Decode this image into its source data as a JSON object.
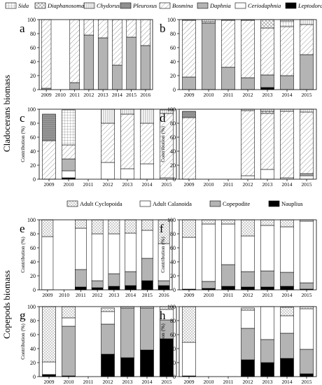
{
  "sections": {
    "cladocerans": "Cladocerans biomass",
    "copepods": "Copepods biomass"
  },
  "legend_cladocerans": [
    {
      "name": "Sida",
      "pattern": "grid"
    },
    {
      "name": "Diaphanosoma",
      "pattern": "cross"
    },
    {
      "name": "Chydorus",
      "pattern": "vlines"
    },
    {
      "name": "Pleuroxus",
      "pattern": "hlines"
    },
    {
      "name": "Bosmina",
      "pattern": "diag"
    },
    {
      "name": "Daphnia",
      "pattern": "gray"
    },
    {
      "name": "Ceriodaphnia",
      "pattern": "white"
    },
    {
      "name": "Leptodora",
      "pattern": "black"
    }
  ],
  "legend_copepods": [
    {
      "name": "Adult Cyclopoida",
      "pattern": "dots"
    },
    {
      "name": "Adult Calanoida",
      "pattern": "white"
    },
    {
      "name": "Copepodite",
      "pattern": "gray"
    },
    {
      "name": "Nauplius",
      "pattern": "black"
    }
  ],
  "chart_data": [
    {
      "panel": "a",
      "type": "bar",
      "stacked": true,
      "ylabel": "",
      "ylim": [
        0,
        100
      ],
      "categories": [
        "2009",
        "2010",
        "2011",
        "2012",
        "2013",
        "2014",
        "2015",
        "2016"
      ],
      "series": [
        {
          "name": "Leptodora",
          "pattern": "black",
          "values": [
            0,
            0,
            0,
            0,
            0,
            0,
            0,
            0
          ]
        },
        {
          "name": "Ceriodaphnia",
          "pattern": "white",
          "values": [
            0,
            0,
            0,
            0,
            0,
            0,
            0,
            0
          ]
        },
        {
          "name": "Daphnia",
          "pattern": "gray",
          "values": [
            2,
            0,
            10,
            78,
            74,
            35,
            75,
            63
          ]
        },
        {
          "name": "Bosmina",
          "pattern": "diag",
          "values": [
            98,
            0,
            90,
            22,
            26,
            65,
            25,
            37
          ]
        }
      ]
    },
    {
      "panel": "b",
      "type": "bar",
      "stacked": true,
      "ylabel": "",
      "ylim": [
        0,
        100
      ],
      "categories": [
        "2009",
        "2010",
        "2011",
        "2012",
        "2013",
        "2014",
        "2015"
      ],
      "series": [
        {
          "name": "Leptodora",
          "pattern": "black",
          "values": [
            0,
            0,
            0,
            0,
            3,
            0,
            0
          ]
        },
        {
          "name": "Ceriodaphnia",
          "pattern": "white",
          "values": [
            0,
            0,
            0,
            0,
            0,
            0,
            0
          ]
        },
        {
          "name": "Daphnia",
          "pattern": "gray",
          "values": [
            18,
            95,
            32,
            17,
            18,
            20,
            50
          ]
        },
        {
          "name": "Bosmina",
          "pattern": "diag",
          "values": [
            81,
            2,
            67,
            82,
            67,
            70,
            43
          ]
        },
        {
          "name": "Diaphanosoma",
          "pattern": "cross",
          "values": [
            0,
            0,
            0,
            0,
            12,
            0,
            0
          ]
        },
        {
          "name": "Sida",
          "pattern": "grid",
          "values": [
            0,
            0,
            0,
            0,
            0,
            8,
            0
          ]
        },
        {
          "name": "Chydorus",
          "pattern": "vlines",
          "values": [
            1,
            3,
            1,
            1,
            0,
            2,
            7
          ]
        }
      ]
    },
    {
      "panel": "c",
      "type": "bar",
      "stacked": true,
      "ylabel": "Contribution (%)",
      "ylim": [
        0,
        100
      ],
      "categories": [
        "2009",
        "2010",
        "2011",
        "2012",
        "2013",
        "2014",
        "2015"
      ],
      "series": [
        {
          "name": "Leptodora",
          "pattern": "black",
          "values": [
            0,
            2,
            0,
            0,
            0,
            0,
            0
          ]
        },
        {
          "name": "Ceriodaphnia",
          "pattern": "white",
          "values": [
            0,
            10,
            0,
            24,
            15,
            22,
            2
          ]
        },
        {
          "name": "Daphnia",
          "pattern": "gray",
          "values": [
            0,
            17,
            0,
            0,
            0,
            0,
            0
          ]
        },
        {
          "name": "Bosmina",
          "pattern": "diag",
          "values": [
            55,
            20,
            0,
            56,
            78,
            58,
            92
          ]
        },
        {
          "name": "Pleuroxus",
          "pattern": "hlines",
          "values": [
            38,
            0,
            0,
            0,
            0,
            0,
            0
          ]
        },
        {
          "name": "Sida",
          "pattern": "grid",
          "values": [
            0,
            50,
            0,
            0,
            0,
            0,
            0
          ]
        },
        {
          "name": "Chydorus",
          "pattern": "vlines",
          "values": [
            0,
            0,
            0,
            20,
            7,
            20,
            5
          ]
        }
      ]
    },
    {
      "panel": "d",
      "type": "bar",
      "stacked": true,
      "ylabel": "Contribution (%)",
      "ylim": [
        0,
        100
      ],
      "categories": [
        "2009",
        "2010",
        "2011",
        "2012",
        "2013",
        "2014",
        "2015"
      ],
      "series": [
        {
          "name": "Leptodora",
          "pattern": "black",
          "values": [
            0,
            0,
            0,
            0,
            0,
            0,
            0
          ]
        },
        {
          "name": "Ceriodaphnia",
          "pattern": "white",
          "values": [
            0,
            0,
            0,
            5,
            14,
            2,
            5
          ]
        },
        {
          "name": "Daphnia",
          "pattern": "gray",
          "values": [
            0,
            0,
            0,
            0,
            0,
            0,
            3
          ]
        },
        {
          "name": "Bosmina",
          "pattern": "diag",
          "values": [
            88,
            0,
            0,
            93,
            80,
            95,
            88
          ]
        },
        {
          "name": "Pleuroxus",
          "pattern": "hlines",
          "values": [
            9,
            0,
            0,
            0,
            0,
            0,
            0
          ]
        },
        {
          "name": "Diaphanosoma",
          "pattern": "cross",
          "values": [
            0,
            0,
            0,
            0,
            3,
            0,
            0
          ]
        },
        {
          "name": "Chydorus",
          "pattern": "vlines",
          "values": [
            0,
            0,
            0,
            2,
            3,
            3,
            4
          ]
        }
      ]
    },
    {
      "panel": "e",
      "type": "bar",
      "stacked": true,
      "ylabel": "Contribution (%)",
      "ylim": [
        0,
        100
      ],
      "categories": [
        "2009",
        "2010",
        "2011",
        "2012",
        "2013",
        "2014",
        "2015",
        "2016"
      ],
      "series": [
        {
          "name": "Nauplius",
          "pattern": "black",
          "values": [
            0,
            0,
            4,
            3,
            5,
            6,
            13,
            6
          ]
        },
        {
          "name": "Copepodite",
          "pattern": "gray",
          "values": [
            0,
            0,
            25,
            10,
            18,
            20,
            32,
            7
          ]
        },
        {
          "name": "Adult Calanoida",
          "pattern": "white",
          "values": [
            76,
            0,
            59,
            67,
            57,
            55,
            40,
            53
          ]
        },
        {
          "name": "Adult Cyclopoida",
          "pattern": "dots",
          "values": [
            24,
            0,
            12,
            20,
            20,
            19,
            15,
            34
          ]
        }
      ]
    },
    {
      "panel": "f",
      "type": "bar",
      "stacked": true,
      "ylabel": "Contribution (%)",
      "ylim": [
        0,
        100
      ],
      "categories": [
        "2009",
        "2010",
        "2011",
        "2012",
        "2013",
        "2014",
        "2015"
      ],
      "series": [
        {
          "name": "Nauplius",
          "pattern": "black",
          "values": [
            1,
            2,
            5,
            4,
            4,
            5,
            1
          ]
        },
        {
          "name": "Copepodite",
          "pattern": "gray",
          "values": [
            0,
            10,
            31,
            22,
            23,
            20,
            9
          ]
        },
        {
          "name": "Adult Calanoida",
          "pattern": "white",
          "values": [
            74,
            82,
            58,
            51,
            65,
            65,
            88
          ]
        },
        {
          "name": "Adult Cyclopoida",
          "pattern": "dots",
          "values": [
            25,
            6,
            6,
            23,
            8,
            10,
            2
          ]
        }
      ]
    },
    {
      "panel": "g",
      "type": "bar",
      "stacked": true,
      "ylabel": "Contribution (%)",
      "ylim": [
        0,
        100
      ],
      "categories": [
        "2009",
        "2010",
        "2011",
        "2012",
        "2013",
        "2014",
        "2015"
      ],
      "series": [
        {
          "name": "Nauplius",
          "pattern": "black",
          "values": [
            3,
            1,
            0,
            32,
            27,
            38,
            54
          ]
        },
        {
          "name": "Copepodite",
          "pattern": "gray",
          "values": [
            0,
            71,
            0,
            43,
            71,
            60,
            27
          ]
        },
        {
          "name": "Adult Calanoida",
          "pattern": "white",
          "values": [
            18,
            12,
            0,
            18,
            0,
            0,
            15
          ]
        },
        {
          "name": "Adult Cyclopoida",
          "pattern": "dots",
          "values": [
            79,
            16,
            0,
            5,
            2,
            2,
            4
          ]
        }
      ]
    },
    {
      "panel": "h",
      "type": "bar",
      "stacked": true,
      "ylabel": "Contribution (%)",
      "ylim": [
        0,
        100
      ],
      "categories": [
        "2009",
        "2010",
        "2011",
        "2012",
        "2013",
        "2014",
        "2015"
      ],
      "series": [
        {
          "name": "Nauplius",
          "pattern": "black",
          "values": [
            1,
            0,
            0,
            24,
            20,
            26,
            4
          ]
        },
        {
          "name": "Copepodite",
          "pattern": "gray",
          "values": [
            0,
            0,
            0,
            45,
            33,
            36,
            35
          ]
        },
        {
          "name": "Adult Calanoida",
          "pattern": "white",
          "values": [
            48,
            0,
            0,
            26,
            47,
            25,
            58
          ]
        },
        {
          "name": "Adult Cyclopoida",
          "pattern": "dots",
          "values": [
            51,
            0,
            0,
            3,
            0,
            12,
            3
          ]
        }
      ]
    }
  ]
}
